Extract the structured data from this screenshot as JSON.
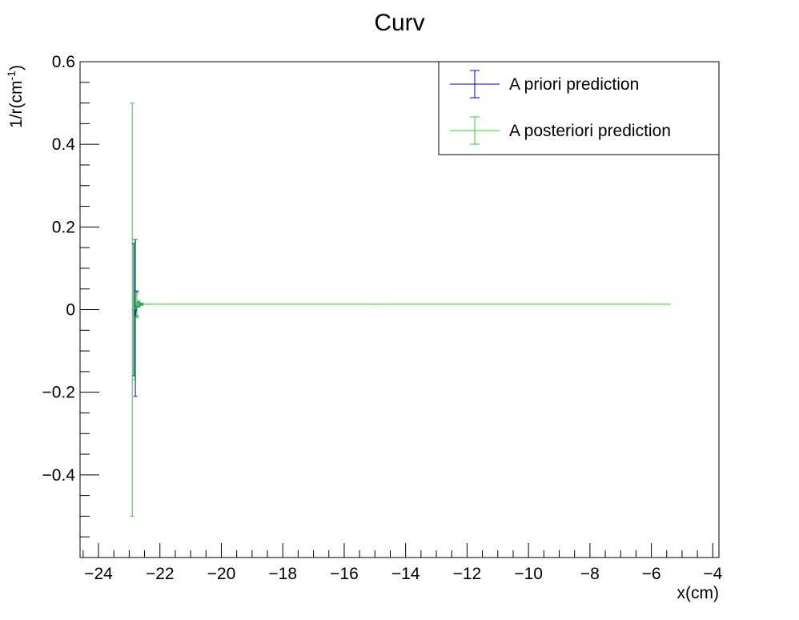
{
  "chart_data": {
    "type": "line",
    "title": "Curv",
    "xlabel": "x(cm)",
    "ylabel": "1/r(cm",
    "ylabel_sup": "-1",
    "ylabel_close": ")",
    "xlim": [
      -24.6,
      -3.8
    ],
    "ylim": [
      -0.6,
      0.6
    ],
    "xticks": [
      {
        "value": -24,
        "label": "−24"
      },
      {
        "value": -22,
        "label": "−22"
      },
      {
        "value": -20,
        "label": "−20"
      },
      {
        "value": -18,
        "label": "−18"
      },
      {
        "value": -16,
        "label": "−16"
      },
      {
        "value": -14,
        "label": "−14"
      },
      {
        "value": -12,
        "label": "−12"
      },
      {
        "value": -10,
        "label": "−10"
      },
      {
        "value": -8,
        "label": "−8"
      },
      {
        "value": -6,
        "label": "−6"
      },
      {
        "value": -4,
        "label": "−4"
      }
    ],
    "yticks": [
      {
        "value": 0.6,
        "label": "0.6"
      },
      {
        "value": 0.4,
        "label": "0.4"
      },
      {
        "value": 0.2,
        "label": "0.2"
      },
      {
        "value": 0,
        "label": "0"
      },
      {
        "value": -0.2,
        "label": "−0.2"
      },
      {
        "value": -0.4,
        "label": "−0.4"
      }
    ],
    "legend_position": "top-right",
    "series": [
      {
        "name": "A priori prediction",
        "color": "#0000cc",
        "points": [
          {
            "x": -22.85,
            "y": 0.0,
            "yerr": 0.16
          },
          {
            "x": -22.8,
            "y": -0.02,
            "yerr": 0.19
          },
          {
            "x": -22.75,
            "y": 0.015,
            "yerr": 0.03
          },
          {
            "x": -22.7,
            "y": 0.013,
            "yerr": 0.005
          },
          {
            "x": -22.6,
            "y": 0.013,
            "yerr": 0.002
          }
        ]
      },
      {
        "name": "A posteriori prediction",
        "color": "#33cc33",
        "points": [
          {
            "x": -22.9,
            "y": 0.0,
            "yerr": 0.5
          },
          {
            "x": -22.82,
            "y": 0.0,
            "yerr": 0.17
          },
          {
            "x": -22.75,
            "y": 0.01,
            "yerr": 0.03
          },
          {
            "x": -22.7,
            "y": 0.013,
            "yerr": 0.008
          },
          {
            "x": -22.6,
            "y": 0.013,
            "yerr": 0.003
          },
          {
            "x": -22.4,
            "y": 0.013,
            "yerr": 0.0
          },
          {
            "x": -15.0,
            "y": 0.013,
            "yerr": 0.0
          },
          {
            "x": -5.4,
            "y": 0.013,
            "yerr": 0.0
          }
        ]
      }
    ]
  }
}
